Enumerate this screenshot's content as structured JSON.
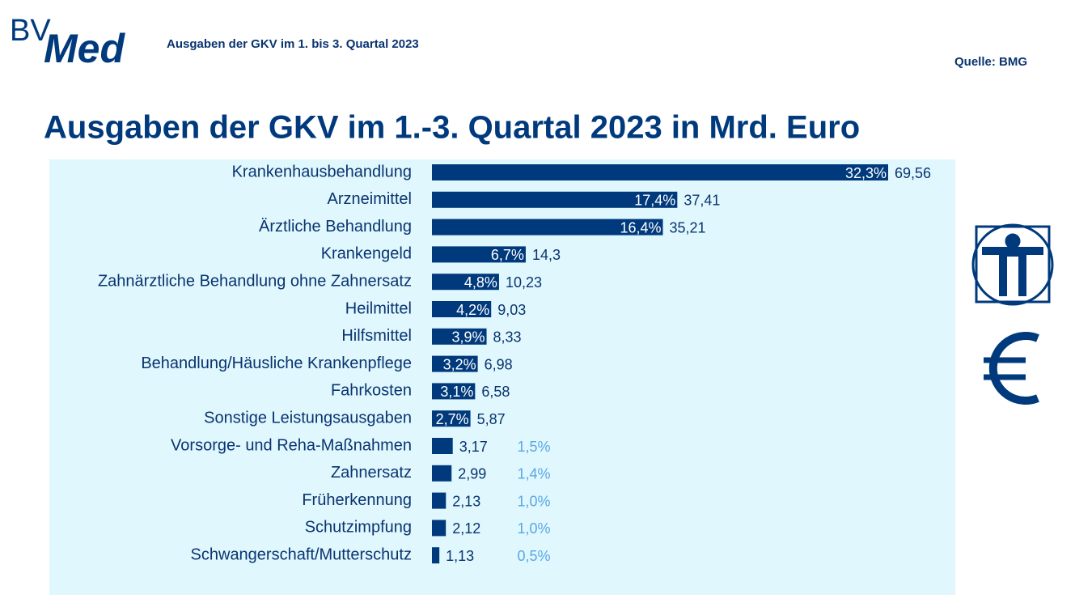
{
  "header": {
    "logo_left": "BV",
    "logo_right": "Med",
    "subtitle": "Ausgaben der GKV im 1. bis 3. Quartal 2023",
    "source": "Quelle: BMG"
  },
  "chart_data": {
    "type": "bar",
    "orientation": "horizontal",
    "title": "Ausgaben der GKV im 1.-3. Quartal 2023 in Mrd. Euro",
    "categories": [
      "Krankenhausbehandlung",
      "Arzneimittel",
      "Ärztliche Behandlung",
      "Krankengeld",
      "Zahnärztliche Behandlung ohne Zahnersatz",
      "Heilmittel",
      "Hilfsmittel",
      "Behandlung/Häusliche Krankenpflege",
      "Fahrkosten",
      "Sonstige Leistungsausgaben",
      "Vorsorge- und Reha-Maßnahmen",
      "Zahnersatz",
      "Früherkennung",
      "Schutzimpfung",
      "Schwangerschaft/Mutterschutz"
    ],
    "values": [
      69.56,
      37.41,
      35.21,
      14.3,
      10.23,
      9.03,
      8.33,
      6.98,
      6.58,
      5.87,
      3.17,
      2.99,
      2.13,
      2.12,
      1.13
    ],
    "value_labels": [
      "69,56",
      "37,41",
      "35,21",
      "14,3",
      "10,23",
      "9,03",
      "8,33",
      "6,98",
      "6,58",
      "5,87",
      "3,17",
      "2,99",
      "2,13",
      "2,12",
      "1,13"
    ],
    "shares": [
      32.3,
      17.4,
      16.4,
      6.7,
      4.8,
      4.2,
      3.9,
      3.2,
      3.1,
      2.7,
      1.5,
      1.4,
      1.0,
      1.0,
      0.5
    ],
    "share_labels": [
      "32,3%",
      "17,4%",
      "16,4%",
      "6,7%",
      "4,8%",
      "4,2%",
      "3,9%",
      "3,2%",
      "3,1%",
      "2,7%",
      "1,5%",
      "1,4%",
      "1,0%",
      "1,0%",
      "0,5%"
    ],
    "color": "#003a7d",
    "background": "#dff7fd"
  }
}
